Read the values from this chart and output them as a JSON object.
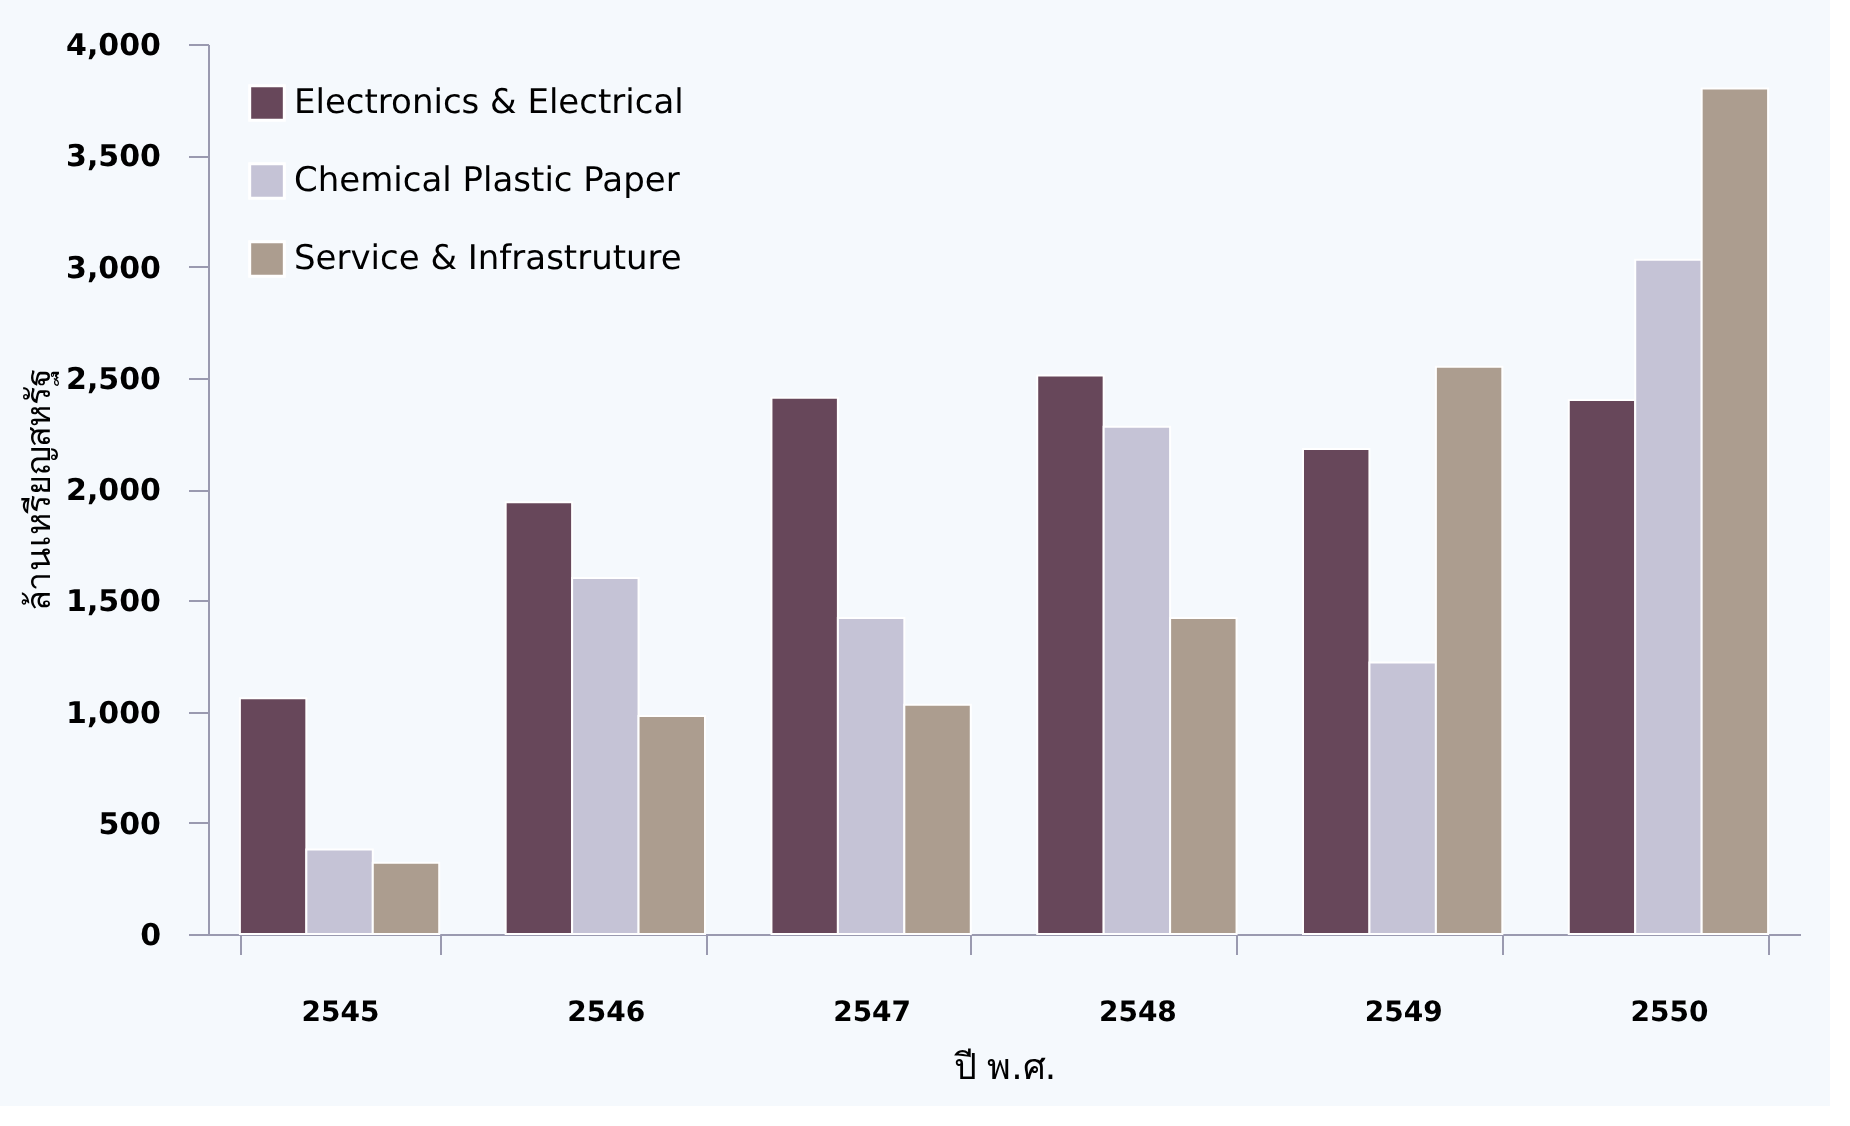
{
  "chart_data": {
    "type": "bar",
    "xlabel": "ปี พ.ศ.",
    "ylabel": "ล้านเหรียญสหรัฐ",
    "categories": [
      "2545",
      "2546",
      "2547",
      "2548",
      "2549",
      "2550"
    ],
    "series": [
      {
        "name": "Electronics & Electrical",
        "color": "#67475a",
        "values": [
          1060,
          1940,
          2410,
          2510,
          2180,
          2400
        ]
      },
      {
        "name": "Chemical Plastic  Paper",
        "color": "#c5c3d6",
        "values": [
          380,
          1600,
          1420,
          2280,
          1220,
          3030
        ]
      },
      {
        "name": "Service & Infrastruture",
        "color": "#ac9d8f",
        "values": [
          320,
          980,
          1030,
          1420,
          2550,
          3800
        ]
      }
    ],
    "ylim": [
      0,
      4000
    ],
    "yticks": [
      0,
      {
        "value": 500,
        "label": "500"
      },
      {
        "value": 1000,
        "label": "1,000"
      },
      {
        "value": 1500,
        "label": "1,500"
      },
      {
        "value": 2000,
        "label": "2,000"
      },
      {
        "value": 2500,
        "label": "2,500"
      },
      {
        "value": 3000,
        "label": "3,000"
      },
      {
        "value": 3500,
        "label": "3,500"
      },
      {
        "value": 4000,
        "label": "4,000"
      }
    ],
    "grid": false,
    "legend": "top left"
  }
}
